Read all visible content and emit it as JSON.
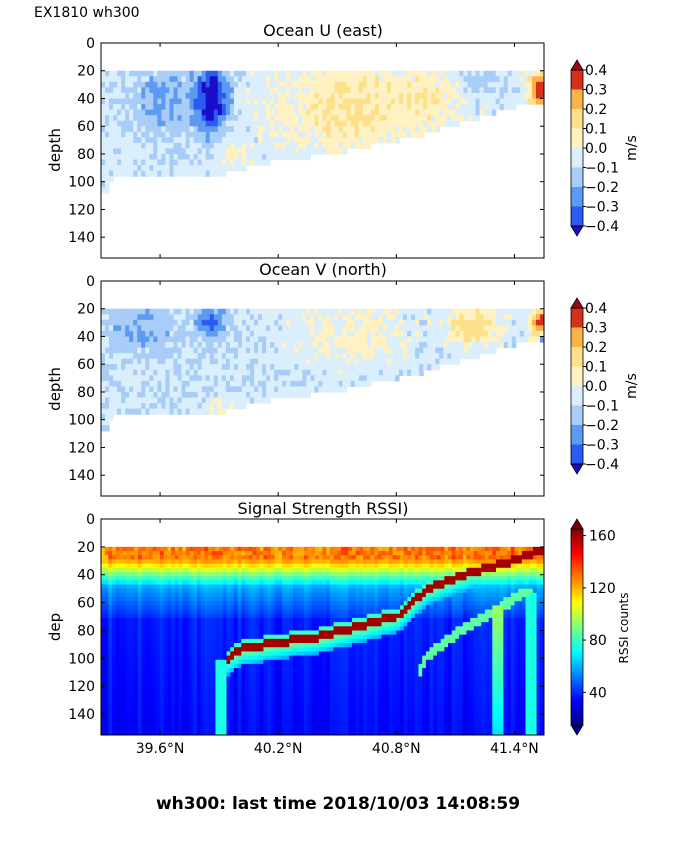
{
  "figure": {
    "corner_label": "EX1810 wh300",
    "footer": "wh300: last time 2018/10/03 14:08:59"
  },
  "chart_data": [
    {
      "type": "heatmap",
      "title": "Ocean U (east)",
      "ylabel": "depth",
      "ylim": [
        155,
        0
      ],
      "yticks": [
        "0",
        "20",
        "40",
        "60",
        "80",
        "100",
        "120",
        "140"
      ],
      "xlim": [
        39.3,
        41.55
      ],
      "colorbar": {
        "label": "m/s",
        "ticks": [
          "0.4",
          "0.3",
          "0.2",
          "0.1",
          "0.0",
          "−0.1",
          "−0.2",
          "−0.3",
          "−0.4"
        ],
        "range": [
          -0.4,
          0.4
        ],
        "colors": [
          "#1a0ec8",
          "#2b5bf0",
          "#5d9af2",
          "#a7cdf8",
          "#dbeefb",
          "#fff1c1",
          "#fde18a",
          "#fbb346",
          "#f47a26",
          "#d6301d",
          "#9f0714"
        ]
      },
      "data_extent": {
        "x": [
          39.3,
          41.5,
          41.55
        ],
        "max_depth": [
          105,
          95,
          92,
          80,
          70,
          60,
          50,
          44,
          44
        ],
        "depth_top": 20
      },
      "features": [
        {
          "name": "strong westward core",
          "x": 39.85,
          "depth": [
            20,
            65
          ],
          "value": -0.4
        },
        {
          "name": "eastward patches",
          "x": [
            40.3,
            41.0
          ],
          "depth": [
            20,
            70
          ],
          "value": 0.15
        },
        {
          "name": "strong eastward edge",
          "x": 41.5,
          "depth": [
            20,
            45
          ],
          "value": 0.4
        }
      ]
    },
    {
      "type": "heatmap",
      "title": "Ocean V (north)",
      "ylabel": "depth",
      "ylim": [
        155,
        0
      ],
      "yticks": [
        "0",
        "20",
        "40",
        "60",
        "80",
        "100",
        "120",
        "140"
      ],
      "xlim": [
        39.3,
        41.55
      ],
      "colorbar": {
        "label": "m/s",
        "ticks": [
          "0.4",
          "0.3",
          "0.2",
          "0.1",
          "0.0",
          "−0.1",
          "−0.2",
          "−0.3",
          "−0.4"
        ],
        "range": [
          -0.4,
          0.4
        ],
        "colors": [
          "#1a0ec8",
          "#2b5bf0",
          "#5d9af2",
          "#a7cdf8",
          "#dbeefb",
          "#fff1c1",
          "#fde18a",
          "#fbb346",
          "#f47a26",
          "#d6301d",
          "#9f0714"
        ]
      },
      "features": [
        {
          "name": "southward patch",
          "x": 39.85,
          "depth": [
            20,
            35
          ],
          "value": -0.35
        },
        {
          "name": "northward patch",
          "x": 41.2,
          "depth": [
            20,
            40
          ],
          "value": 0.3
        },
        {
          "name": "edge dipole",
          "x": 41.5,
          "depth": [
            20,
            50
          ],
          "value": 0.4
        }
      ]
    },
    {
      "type": "heatmap",
      "title": "Signal Strength RSSI)",
      "ylabel": "dep",
      "ylim": [
        155,
        0
      ],
      "yticks": [
        "0",
        "20",
        "40",
        "60",
        "80",
        "100",
        "120",
        "140"
      ],
      "xlim": [
        39.3,
        41.55
      ],
      "xticks": [
        "39.6°N",
        "40.2°N",
        "40.8°N",
        "41.4°N"
      ],
      "xtick_values": [
        39.6,
        40.2,
        40.8,
        41.4
      ],
      "colorbar": {
        "label": "RSSI counts",
        "ticks": [
          "160",
          "120",
          "80",
          "40"
        ],
        "tick_values": [
          160,
          120,
          80,
          40
        ],
        "range": [
          15,
          165
        ]
      },
      "bottom_echo": {
        "x": [
          39.92,
          40.0,
          40.2,
          40.4,
          40.8,
          40.95,
          41.1,
          41.3,
          41.45,
          41.55
        ],
        "depth": [
          100,
          92,
          87,
          83,
          68,
          48,
          40,
          32,
          25,
          20
        ]
      }
    }
  ]
}
